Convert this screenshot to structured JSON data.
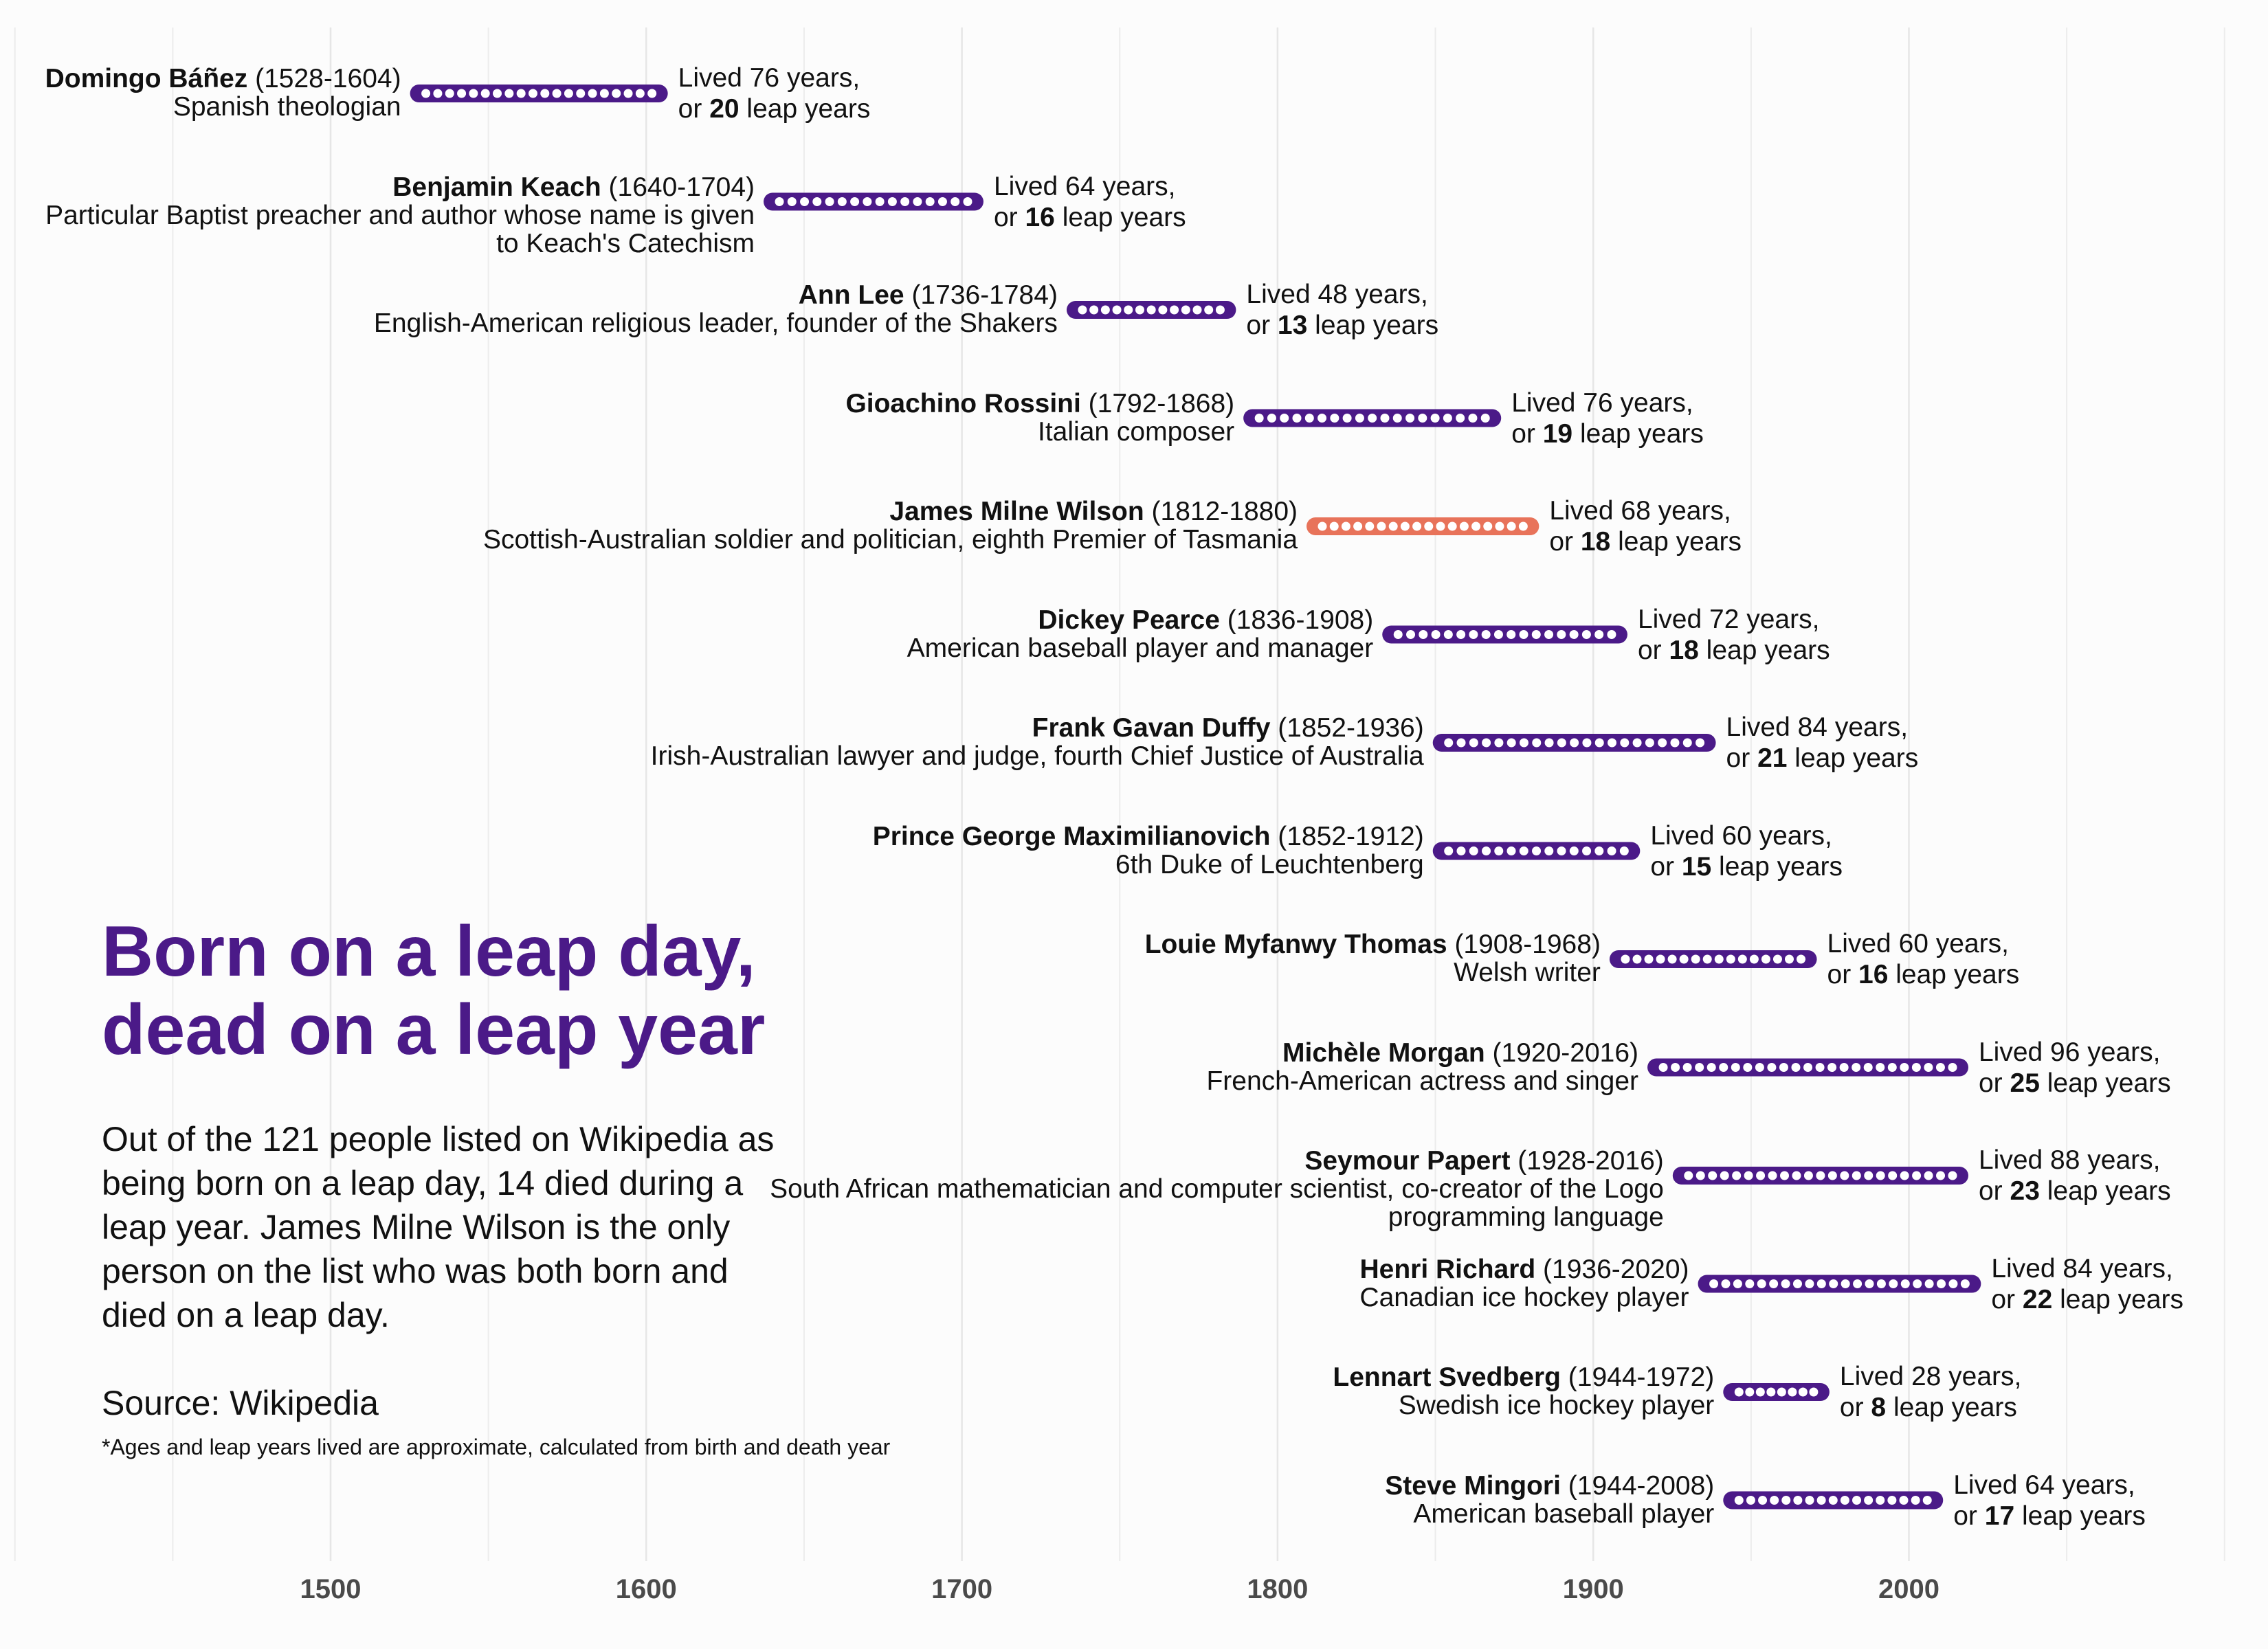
{
  "chart_data": {
    "type": "timeline",
    "title": "Born on a leap day,\ndead on a leap year",
    "subtitle": "Out of the 121 people listed on Wikipedia as being born on a leap day, 14 died during a leap year. James Milne Wilson is the only person on the list who was both born and died on a leap day.",
    "source": "Source: Wikipedia",
    "footnote": "*Ages and leap years lived are approximate, calculated from birth and death year",
    "x_ticks": [
      1500,
      1600,
      1700,
      1800,
      1900,
      2000
    ],
    "xlim": [
      1400,
      2100
    ],
    "grid": true,
    "colors": {
      "default": "#4b1a88",
      "highlight": "#e8735a"
    },
    "people": [
      {
        "name": "Domingo Báñez",
        "years": "(1528-1604)",
        "description": "Spanish theologian",
        "birth": 1528,
        "death": 1604,
        "lived_prefix": "Lived 76 years,",
        "leap_prefix": "or",
        "leap_years": "20",
        "leap_suffix": "leap years",
        "highlight": false
      },
      {
        "name": "Benjamin Keach",
        "years": "(1640-1704)",
        "description": "Particular Baptist preacher and author whose name is given to Keach's Catechism",
        "birth": 1640,
        "death": 1704,
        "lived_prefix": "Lived 64 years,",
        "leap_prefix": "or",
        "leap_years": "16",
        "leap_suffix": "leap years",
        "highlight": false
      },
      {
        "name": "Ann Lee",
        "years": "(1736-1784)",
        "description": "English-American religious leader, founder of the Shakers",
        "birth": 1736,
        "death": 1784,
        "lived_prefix": "Lived 48 years,",
        "leap_prefix": "or",
        "leap_years": "13",
        "leap_suffix": "leap years",
        "highlight": false
      },
      {
        "name": "Gioachino Rossini",
        "years": "(1792-1868)",
        "description": "Italian composer",
        "birth": 1792,
        "death": 1868,
        "lived_prefix": "Lived 76 years,",
        "leap_prefix": "or",
        "leap_years": "19",
        "leap_suffix": "leap years",
        "highlight": false
      },
      {
        "name": "James Milne Wilson",
        "years": "(1812-1880)",
        "description": "Scottish-Australian soldier and politician, eighth Premier of Tasmania",
        "birth": 1812,
        "death": 1880,
        "lived_prefix": "Lived 68 years,",
        "leap_prefix": "or",
        "leap_years": "18",
        "leap_suffix": "leap years",
        "highlight": true
      },
      {
        "name": "Dickey Pearce",
        "years": "(1836-1908)",
        "description": "American baseball player and manager",
        "birth": 1836,
        "death": 1908,
        "lived_prefix": "Lived 72 years,",
        "leap_prefix": "or",
        "leap_years": "18",
        "leap_suffix": "leap years",
        "highlight": false
      },
      {
        "name": "Frank Gavan Duffy",
        "years": "(1852-1936)",
        "description": "Irish-Australian lawyer and judge, fourth Chief Justice of Australia",
        "birth": 1852,
        "death": 1936,
        "lived_prefix": "Lived 84 years,",
        "leap_prefix": "or",
        "leap_years": "21",
        "leap_suffix": "leap years",
        "highlight": false
      },
      {
        "name": "Prince George Maximilianovich",
        "years": "(1852-1912)",
        "description": "6th Duke of Leuchtenberg",
        "birth": 1852,
        "death": 1912,
        "lived_prefix": "Lived 60 years,",
        "leap_prefix": "or",
        "leap_years": "15",
        "leap_suffix": "leap years",
        "highlight": false
      },
      {
        "name": "Louie Myfanwy Thomas",
        "years": "(1908-1968)",
        "description": "Welsh writer",
        "birth": 1908,
        "death": 1968,
        "lived_prefix": "Lived 60 years,",
        "leap_prefix": "or",
        "leap_years": "16",
        "leap_suffix": "leap years",
        "highlight": false
      },
      {
        "name": "Michèle Morgan",
        "years": "(1920-2016)",
        "description": "French-American actress and singer",
        "birth": 1920,
        "death": 2016,
        "lived_prefix": "Lived 96 years,",
        "leap_prefix": "or",
        "leap_years": "25",
        "leap_suffix": "leap years",
        "highlight": false
      },
      {
        "name": "Seymour Papert",
        "years": "(1928-2016)",
        "description": "South African mathematician and computer scientist, co-creator of the Logo programming language",
        "birth": 1928,
        "death": 2016,
        "lived_prefix": "Lived 88 years,",
        "leap_prefix": "or",
        "leap_years": "23",
        "leap_suffix": "leap years",
        "highlight": false
      },
      {
        "name": "Henri Richard",
        "years": "(1936-2020)",
        "description": "Canadian ice hockey player",
        "birth": 1936,
        "death": 2020,
        "lived_prefix": "Lived 84 years,",
        "leap_prefix": "or",
        "leap_years": "22",
        "leap_suffix": "leap years",
        "highlight": false
      },
      {
        "name": "Lennart Svedberg",
        "years": "(1944-1972)",
        "description": "Swedish ice hockey player",
        "birth": 1944,
        "death": 1972,
        "lived_prefix": "Lived 28 years,",
        "leap_prefix": "or",
        "leap_years": "8",
        "leap_suffix": "leap years",
        "highlight": false
      },
      {
        "name": "Steve Mingori",
        "years": "(1944-2008)",
        "description": "American baseball player",
        "birth": 1944,
        "death": 2008,
        "lived_prefix": "Lived 64 years,",
        "leap_prefix": "or",
        "leap_years": "17",
        "leap_suffix": "leap years",
        "highlight": false
      }
    ]
  }
}
